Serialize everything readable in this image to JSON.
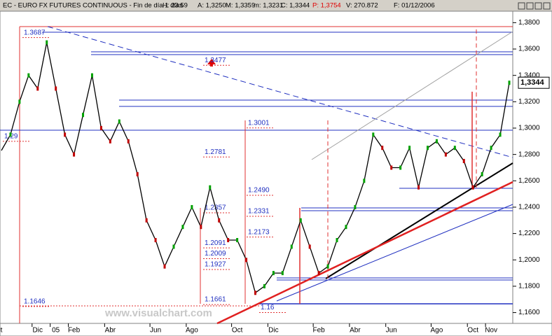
{
  "chart_data": {
    "type": "line",
    "title": "EC - EURO FX FUTURES CONTINUOUS - Fin de día 1 días",
    "header_fields": [
      "H: 23:59",
      "A: 1,3250",
      "M: 1,3359",
      "m: 1,3231",
      "C: 1,3344",
      "P: 1,3754",
      "V: 270.872",
      "F: 01/12/2006"
    ],
    "last_price": {
      "value": 1.3344,
      "label": "1,3344"
    },
    "watermark": "www.visualchart.com",
    "categories": [
      "t",
      null,
      null,
      null,
      "Dic",
      null,
      "05",
      null,
      "Feb",
      null,
      null,
      null,
      "Abr",
      null,
      null,
      null,
      null,
      "Jun",
      null,
      null,
      null,
      "Ago",
      null,
      null,
      null,
      null,
      "Oct",
      null,
      null,
      null,
      "Dic",
      null,
      null,
      null,
      null,
      "Feb",
      null,
      null,
      null,
      "Abr",
      null,
      null,
      null,
      "Jun",
      null,
      null,
      null,
      null,
      "Ago",
      null,
      null,
      null,
      "Oct",
      null,
      "Nov",
      null,
      null
    ],
    "series": [
      {
        "name": "EC",
        "color": "#000000",
        "values": [
          1.283,
          1.295,
          1.32,
          1.34,
          1.33,
          1.365,
          1.33,
          1.295,
          1.28,
          1.31,
          1.34,
          1.3,
          1.29,
          1.305,
          1.29,
          1.265,
          1.23,
          1.215,
          1.195,
          1.21,
          1.225,
          1.24,
          1.225,
          1.255,
          1.23,
          1.215,
          1.215,
          1.2,
          1.175,
          1.18,
          1.19,
          1.19,
          1.21,
          1.23,
          1.21,
          1.19,
          1.195,
          1.215,
          1.225,
          1.24,
          1.26,
          1.295,
          1.285,
          1.27,
          1.27,
          1.285,
          1.255,
          1.285,
          1.29,
          1.28,
          1.285,
          1.275,
          1.255,
          1.265,
          1.285,
          1.295,
          1.3344
        ]
      }
    ],
    "level_labels": [
      1.3687,
      1.3477,
      1.3001,
      1.2781,
      {
        "value": 1.249,
        "label": "1.2490"
      },
      1.2357,
      1.2331,
      1.2173,
      1.2091,
      1.2009,
      1.1927,
      1.1661,
      1.1646,
      {
        "value": 1.16,
        "label": "1.16"
      },
      {
        "value": 1.29,
        "label": "1.29"
      }
    ],
    "ylim": [
      1.1518,
      1.3887
    ],
    "yticks": [
      {
        "value": 1.16,
        "label": "1,1600"
      },
      {
        "value": 1.18,
        "label": "1,1800"
      },
      {
        "value": 1.2,
        "label": "1,2000"
      },
      {
        "value": 1.22,
        "label": "1,2200"
      },
      {
        "value": 1.24,
        "label": "1,2400"
      },
      {
        "value": 1.26,
        "label": "1,2600"
      },
      {
        "value": 1.28,
        "label": "1,2800"
      },
      {
        "value": 1.3,
        "label": "1,3000"
      },
      {
        "value": 1.32,
        "label": "1,3200"
      },
      {
        "value": 1.34,
        "label": "1,3400"
      },
      {
        "value": 1.36,
        "label": "1,3600"
      },
      {
        "value": 1.38,
        "label": "1,3800"
      }
    ]
  }
}
